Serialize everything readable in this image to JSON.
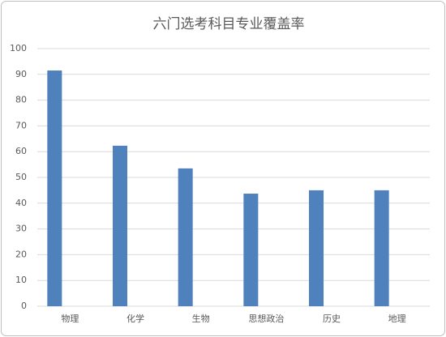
{
  "chart_data": {
    "type": "bar",
    "title": "六门选考科目专业覆盖率",
    "categories": [
      "物理",
      "化学",
      "生物",
      "思想政治",
      "历史",
      "地理"
    ],
    "values": [
      91.5,
      62.3,
      53.5,
      43.7,
      45,
      45
    ],
    "color": "#4f81bd",
    "ylim": [
      0,
      100
    ],
    "yticks": [
      0,
      10,
      20,
      30,
      40,
      50,
      60,
      70,
      80,
      90,
      100
    ],
    "grid": true
  }
}
